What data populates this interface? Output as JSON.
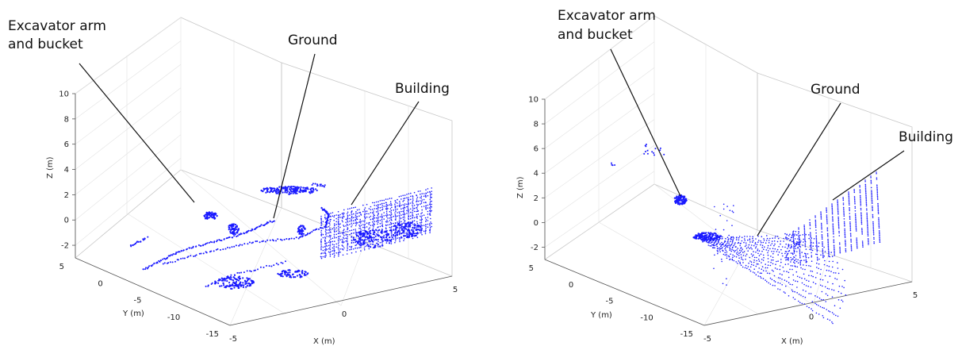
{
  "chart_data": [
    {
      "type": "scatter",
      "subtype": "3d-point-cloud",
      "xlabel": "X (m)",
      "ylabel": "Y (m)",
      "zlabel": "Z (m)",
      "xticks": [
        -5,
        0,
        5
      ],
      "yticks": [
        5,
        0,
        -5,
        -10,
        -15
      ],
      "zticks": [
        10,
        8,
        6,
        4,
        2,
        0,
        -2
      ],
      "xlim": [
        -5,
        5
      ],
      "ylim": [
        -15,
        5
      ],
      "zlim": [
        -3,
        10
      ],
      "grid": true,
      "point_color": "#1a1aff",
      "annotations": [
        {
          "lines": [
            "Excavator arm",
            "and bucket"
          ]
        },
        {
          "lines": [
            "Ground"
          ]
        },
        {
          "lines": [
            "Building"
          ]
        }
      ]
    },
    {
      "type": "scatter",
      "subtype": "3d-point-cloud",
      "xlabel": "X (m)",
      "ylabel": "Y (m)",
      "zlabel": "Z (m)",
      "xticks": [
        -5,
        0,
        5
      ],
      "yticks": [
        5,
        0,
        -5,
        -10,
        -15
      ],
      "zticks": [
        10,
        8,
        6,
        4,
        2,
        0,
        -2
      ],
      "xlim": [
        -5,
        5
      ],
      "ylim": [
        -15,
        5
      ],
      "zlim": [
        -3,
        10
      ],
      "grid": true,
      "point_color": "#1a1aff",
      "annotations": [
        {
          "lines": [
            "Excavator arm",
            "and bucket"
          ]
        },
        {
          "lines": [
            "Ground"
          ]
        },
        {
          "lines": [
            "Building"
          ]
        }
      ]
    }
  ]
}
